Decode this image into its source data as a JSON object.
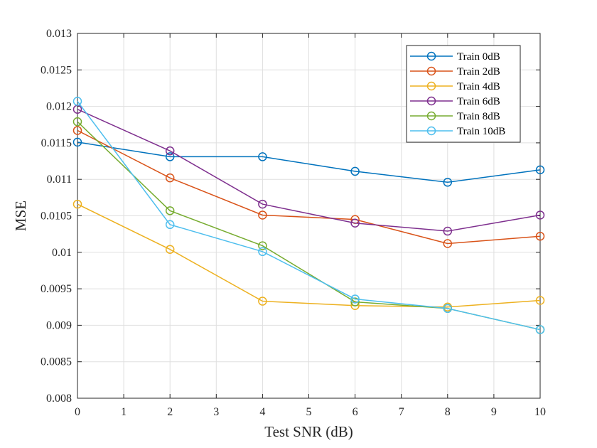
{
  "chart_data": {
    "type": "line",
    "title": "",
    "xlabel": "Test SNR (dB)",
    "ylabel": "MSE",
    "xlim": [
      0,
      10
    ],
    "ylim": [
      0.008,
      0.013
    ],
    "grid": true,
    "legend_position": "top-right",
    "x_ticks": [
      "0",
      "1",
      "2",
      "3",
      "4",
      "5",
      "6",
      "7",
      "8",
      "9",
      "10"
    ],
    "y_ticks": [
      "0.008",
      "0.0085",
      "0.009",
      "0.0095",
      "0.01",
      "0.0105",
      "0.011",
      "0.0115",
      "0.012",
      "0.0125",
      "0.013"
    ],
    "x": [
      0,
      2,
      4,
      6,
      8,
      10
    ],
    "series": [
      {
        "name": "Train 0dB",
        "color": "#0072BD",
        "values": [
          0.01151,
          0.01131,
          0.01131,
          0.01111,
          0.01096,
          0.01113
        ]
      },
      {
        "name": "Train 2dB",
        "color": "#D95319",
        "values": [
          0.01167,
          0.01102,
          0.01051,
          0.01045,
          0.01012,
          0.01022
        ]
      },
      {
        "name": "Train 4dB",
        "color": "#EDB120",
        "values": [
          0.01066,
          0.01004,
          0.00933,
          0.00927,
          0.00925,
          0.00934
        ]
      },
      {
        "name": "Train 6dB",
        "color": "#7E2F8E",
        "values": [
          0.01196,
          0.01139,
          0.01066,
          0.0104,
          0.01029,
          0.01051
        ]
      },
      {
        "name": "Train 8dB",
        "color": "#77AC30",
        "values": [
          0.01179,
          0.01057,
          0.01009,
          0.00932,
          0.00923,
          0.00894
        ]
      },
      {
        "name": "Train 10dB",
        "color": "#4DBEEE",
        "values": [
          0.01207,
          0.01038,
          0.01001,
          0.00936,
          0.00923,
          0.00894
        ]
      }
    ]
  }
}
